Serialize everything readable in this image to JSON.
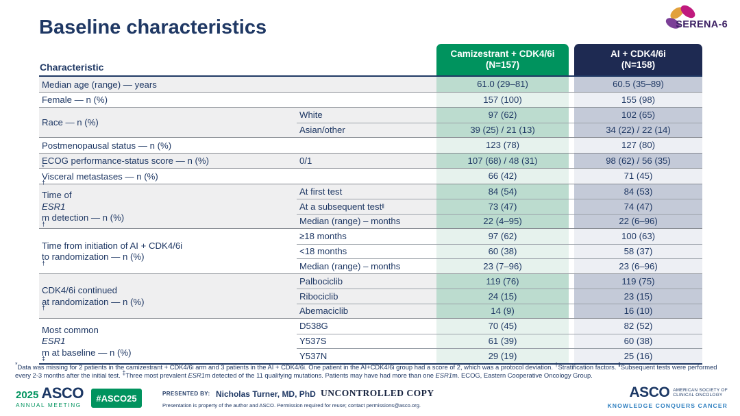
{
  "slide": {
    "title": "Baseline characteristics"
  },
  "serena_logo": {
    "text": "SERENA-6"
  },
  "colors": {
    "navy_text": "#1f3864",
    "header_green": "#00935e",
    "header_navy": "#1e2a52",
    "cam_tint_dark": "#bcdccf",
    "cam_tint_light": "#e6f2ed",
    "ai_tint_dark": "#c4cad8",
    "ai_tint_light": "#edeff4",
    "row_gray": "#efeff0",
    "tagline_blue": "#2e7fc0",
    "serena_purple": "#3d2164",
    "petal_gold": "#e2a13c",
    "petal_magenta": "#c01a7e",
    "petal_purple": "#7b3f97"
  },
  "table": {
    "characteristic_header": "Characteristic",
    "col_cam_header": "Camizestrant + CDK4/6i\n(N=157)",
    "col_ai_header": "AI + CDK4/6i\n(N=158)",
    "groups": [
      {
        "shade": "gray",
        "label": "Median age (range) — years",
        "rows": [
          {
            "sub": "",
            "cam": "61.0 (29–81)",
            "ai": "60.5 (35–89)"
          }
        ]
      },
      {
        "shade": "light",
        "label": "Female — n (%)",
        "rows": [
          {
            "sub": "",
            "cam": "157 (100)",
            "ai": "155 (98)"
          }
        ]
      },
      {
        "shade": "gray",
        "label": "Race — n (%)",
        "rows": [
          {
            "sub": "White",
            "cam": "97 (62)",
            "ai": "102 (65)"
          },
          {
            "sub": "Asian/other",
            "cam": "39 (25) / 21 (13)",
            "ai": "34 (22) / 22 (14)"
          }
        ]
      },
      {
        "shade": "light",
        "label": "Postmenopausal status — n (%)",
        "rows": [
          {
            "sub": "",
            "cam": "123 (78)",
            "ai": "127 (80)"
          }
        ]
      },
      {
        "shade": "gray",
        "label": "ECOG performance-status score — n (%)^*",
        "rows": [
          {
            "sub": "0/1",
            "cam": "107 (68) / 48 (31)",
            "ai": "98 (62) / 56 (35)"
          }
        ]
      },
      {
        "shade": "light",
        "label": "Visceral metastases — n (%)^†",
        "rows": [
          {
            "sub": "",
            "cam": "66 (42)",
            "ai": "71 (45)"
          }
        ]
      },
      {
        "shade": "gray",
        "label": "Time of _ESR1_m detection — n (%)^†",
        "rows": [
          {
            "sub": "At first test",
            "cam": "84 (54)",
            "ai": "84 (53)"
          },
          {
            "sub": "At a subsequent test^‖",
            "cam": "73 (47)",
            "ai": "74 (47)"
          },
          {
            "sub": "Median (range) – months",
            "cam": "22 (4–95)",
            "ai": "22 (6–96)"
          }
        ]
      },
      {
        "shade": "light",
        "label": "Time from initiation of AI + CDK4/6i\nto randomization — n (%)^†",
        "rows": [
          {
            "sub": "≥18 months",
            "cam": "97 (62)",
            "ai": "100 (63)"
          },
          {
            "sub": "<18 months",
            "cam": "60 (38)",
            "ai": "58 (37)"
          },
          {
            "sub": "Median (range) – months",
            "cam": "23 (7–96)",
            "ai": "23 (6–96)"
          }
        ]
      },
      {
        "shade": "gray",
        "label": "CDK4/6i continued\nat randomization — n (%)^†",
        "rows": [
          {
            "sub": "Palbociclib",
            "cam": "119 (76)",
            "ai": "119 (75)"
          },
          {
            "sub": "Ribociclib",
            "cam": "24 (15)",
            "ai": "23 (15)"
          },
          {
            "sub": "Abemaciclib",
            "cam": "14 (9)",
            "ai": "16 (10)"
          }
        ]
      },
      {
        "shade": "light",
        "label": "Most common _ESR1_m at baseline — n (%)^‡",
        "rows": [
          {
            "sub": "D538G",
            "cam": "70 (45)",
            "ai": "82 (52)"
          },
          {
            "sub": "Y537S",
            "cam": "61 (39)",
            "ai": "60 (38)"
          },
          {
            "sub": "Y537N",
            "cam": "29 (19)",
            "ai": "25 (16)"
          }
        ]
      }
    ]
  },
  "footnote": "^*Data was missing for 2 patients in the camizestrant + CDK4/6i arm and 3 patients in the AI + CDK4/6i. One patient in the AI+CDK4/6i group had a score of 2, which was a protocol deviation. ^†Stratification factors. ^‖Subsequent tests were performed every 2-3 months after the initial test. ^‡Three most prevalent _ESR1_m detected of the 11 qualifying mutations. Patients may have had more than one _ESR1_m. ECOG, Eastern Cooperative Oncology Group.",
  "footer": {
    "year": "2025",
    "asco_word": "ASCO",
    "annual_meeting": "ANNUAL MEETING",
    "hashtag": "#ASCO25",
    "presented_by_label": "PRESENTED BY:",
    "presenter": "Nicholas Turner, MD, PhD",
    "disclaimer": "Presentation is property of the author and ASCO. Permission required for reuse; contact permissions@asco.org.",
    "watermark": "UNCONTROLLED COPY",
    "asco_right_word": "ASCO",
    "asco_right_society": "AMERICAN SOCIETY OF\nCLINICAL ONCOLOGY",
    "asco_right_tagline": "KNOWLEDGE CONQUERS CANCER"
  }
}
